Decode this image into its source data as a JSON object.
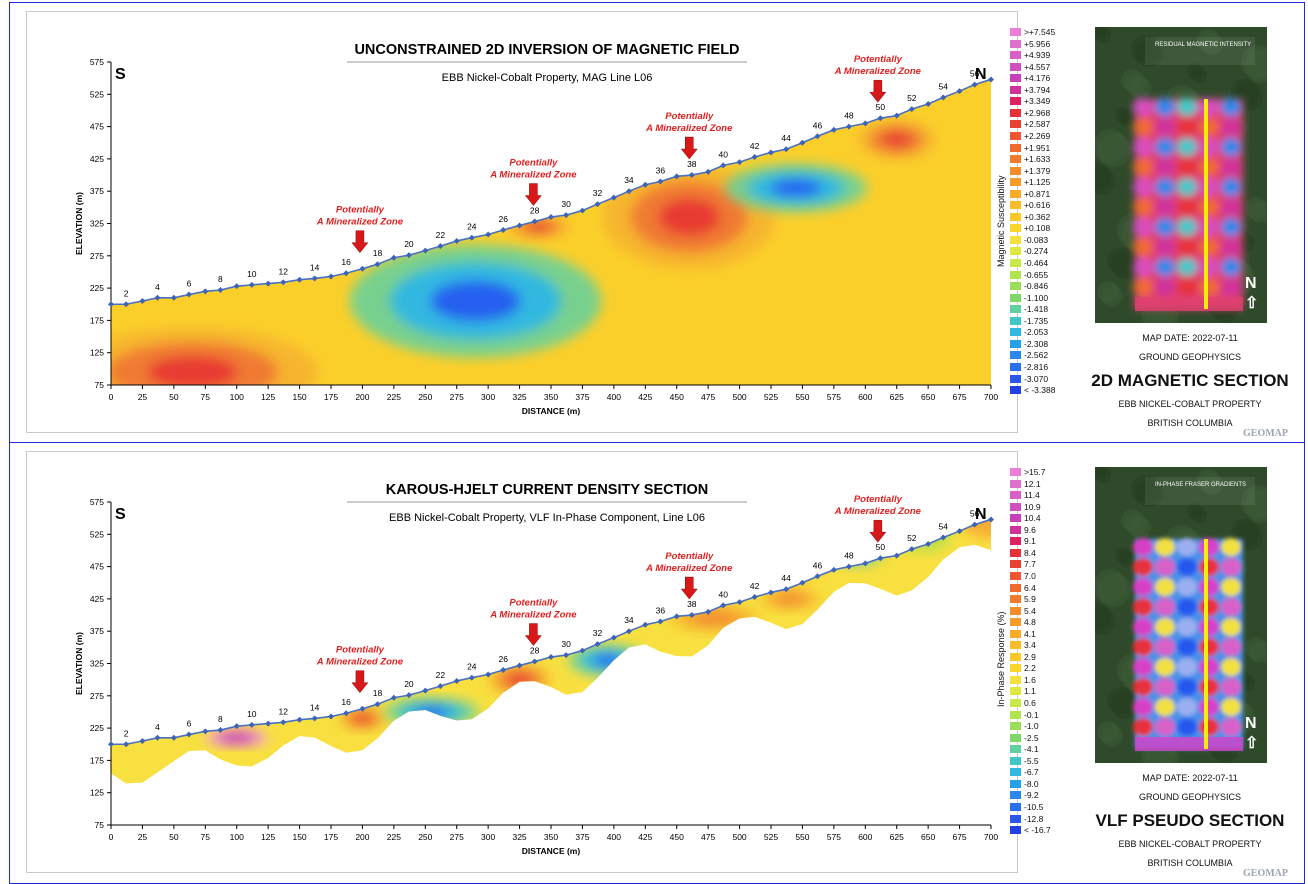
{
  "chart_data": [
    {
      "type": "contour",
      "title": "UNCONSTRAINED 2D INVERSION OF MAGNETIC FIELD",
      "subtitle": "EBB Nickel-Cobalt Property, MAG Line L06",
      "xlabel": "DISTANCE (m)",
      "ylabel": "ELEVATION (m)",
      "xlim": [
        0,
        700
      ],
      "ylim": [
        75,
        575
      ],
      "x_ticks": [
        0,
        25,
        50,
        75,
        100,
        125,
        150,
        175,
        200,
        225,
        250,
        275,
        300,
        325,
        350,
        375,
        400,
        425,
        450,
        475,
        500,
        525,
        550,
        575,
        600,
        625,
        650,
        675,
        700
      ],
      "y_ticks": [
        75,
        125,
        175,
        225,
        275,
        325,
        375,
        425,
        475,
        525,
        575
      ],
      "end_labels": {
        "left": "S",
        "right": "N"
      },
      "stations": {
        "x": [
          0,
          12,
          25,
          37,
          50,
          62,
          75,
          87,
          100,
          112,
          125,
          137,
          150,
          162,
          175,
          187,
          200,
          212,
          225,
          237,
          250,
          262,
          275,
          287,
          300,
          312,
          325,
          337,
          350,
          362,
          375,
          387,
          400,
          412,
          425,
          437,
          450,
          462,
          475,
          487,
          500,
          512,
          525,
          537,
          550,
          562,
          575,
          587,
          600,
          612,
          625,
          637,
          650,
          662,
          675,
          687,
          700
        ],
        "elevation": [
          200,
          200,
          205,
          210,
          210,
          215,
          220,
          222,
          228,
          230,
          232,
          234,
          238,
          240,
          243,
          248,
          255,
          262,
          272,
          276,
          283,
          290,
          298,
          303,
          308,
          315,
          322,
          328,
          335,
          338,
          345,
          355,
          365,
          375,
          385,
          390,
          398,
          400,
          405,
          415,
          420,
          428,
          435,
          440,
          450,
          460,
          470,
          475,
          480,
          488,
          492,
          502,
          510,
          520,
          530,
          540,
          548
        ],
        "labels": [
          2,
          4,
          6,
          8,
          10,
          12,
          14,
          16,
          18,
          20,
          22,
          24,
          26,
          28,
          30,
          32,
          34,
          36,
          38,
          40,
          42,
          44,
          46,
          48,
          50,
          52,
          54,
          56
        ],
        "label_x": [
          12,
          37,
          62,
          87,
          112,
          137,
          162,
          187,
          212,
          237,
          262,
          287,
          312,
          337,
          362,
          387,
          412,
          437,
          462,
          487,
          512,
          537,
          562,
          587,
          612,
          637,
          662,
          687
        ]
      },
      "annotations": [
        {
          "text": "Potentially A Mineralized Zone",
          "x": 198
        },
        {
          "text": "Potentially A Mineralized Zone",
          "x": 336
        },
        {
          "text": "Potentially A Mineralized Zone",
          "x": 460
        },
        {
          "text": "Potentially A Mineralized Zone",
          "x": 610
        }
      ],
      "anomalies": [
        {
          "x": 65,
          "y": 95,
          "rx": 80,
          "ry": 55,
          "level": "high"
        },
        {
          "x": 290,
          "y": 205,
          "rx": 80,
          "ry": 70,
          "level": "low"
        },
        {
          "x": 460,
          "y": 335,
          "rx": 55,
          "ry": 65,
          "level": "high"
        },
        {
          "x": 545,
          "y": 380,
          "rx": 45,
          "ry": 30,
          "level": "low"
        },
        {
          "x": 625,
          "y": 455,
          "rx": 25,
          "ry": 25,
          "level": "high"
        },
        {
          "x": 340,
          "y": 320,
          "rx": 20,
          "ry": 15,
          "level": "high"
        }
      ],
      "legend": {
        "title": "Magnetic Susceptibility",
        "entries": [
          ">+7.545",
          "+5.956",
          "+4.939",
          "+4.557",
          "+4.176",
          "+3.794",
          "+3.349",
          "+2.968",
          "+2.587",
          "+2.269",
          "+1.951",
          "+1.633",
          "+1.379",
          "+1.125",
          "+0.871",
          "+0.616",
          "+0.362",
          "+0.108",
          "-0.083",
          "-0.274",
          "-0.464",
          "-0.655",
          "-0.846",
          "-1.100",
          "-1.418",
          "-1.735",
          "-2.053",
          "-2.308",
          "-2.562",
          "-2.816",
          "-3.070",
          "< -3.388"
        ],
        "colors": [
          "#e87fd4",
          "#e070cc",
          "#d860c8",
          "#d050c0",
          "#c640b8",
          "#d0309c",
          "#e02060",
          "#e8303a",
          "#ea4030",
          "#ee5530",
          "#f06a30",
          "#f27a2e",
          "#f48c2c",
          "#f69c2a",
          "#f8ac28",
          "#f9bb28",
          "#fac828",
          "#fbd52a",
          "#f4e03a",
          "#e0e840",
          "#c8e848",
          "#b0e450",
          "#98de58",
          "#80d86a",
          "#60d0a0",
          "#40c8c8",
          "#30b8e0",
          "#28a0e8",
          "#2888ec",
          "#2870f0",
          "#2858f0",
          "#2040e8"
        ]
      },
      "map_panel": {
        "header": "RESIDUAL MAGNETIC INTENSITY",
        "map_date": "MAP DATE: 2022-07-11",
        "survey": "GROUND GEOPHYSICS",
        "section_title": "2D MAGNETIC SECTION",
        "property": "EBB NICKEL-COBALT PROPERTY",
        "region": "BRITISH COLUMBIA",
        "north_label": "N",
        "logo": "GEOMAP"
      }
    },
    {
      "type": "contour",
      "title": "KAROUS-HJELT CURRENT DENSITY SECTION",
      "subtitle": "EBB Nickel-Cobalt Property, VLF In-Phase Component, Line L06",
      "xlabel": "DISTANCE (m)",
      "ylabel": "ELEVATION (m)",
      "xlim": [
        0,
        700
      ],
      "ylim": [
        75,
        575
      ],
      "x_ticks": [
        0,
        25,
        50,
        75,
        100,
        125,
        150,
        175,
        200,
        225,
        250,
        275,
        300,
        325,
        350,
        375,
        400,
        425,
        450,
        475,
        500,
        525,
        550,
        575,
        600,
        625,
        650,
        675,
        700
      ],
      "y_ticks": [
        75,
        125,
        175,
        225,
        275,
        325,
        375,
        425,
        475,
        525,
        575
      ],
      "end_labels": {
        "left": "S",
        "right": "N"
      },
      "stations": {
        "x": [
          0,
          12,
          25,
          37,
          50,
          62,
          75,
          87,
          100,
          112,
          125,
          137,
          150,
          162,
          175,
          187,
          200,
          212,
          225,
          237,
          250,
          262,
          275,
          287,
          300,
          312,
          325,
          337,
          350,
          362,
          375,
          387,
          400,
          412,
          425,
          437,
          450,
          462,
          475,
          487,
          500,
          512,
          525,
          537,
          550,
          562,
          575,
          587,
          600,
          612,
          625,
          637,
          650,
          662,
          675,
          687,
          700
        ],
        "elevation": [
          200,
          200,
          205,
          210,
          210,
          215,
          220,
          222,
          228,
          230,
          232,
          234,
          238,
          240,
          243,
          248,
          255,
          262,
          272,
          276,
          283,
          290,
          298,
          303,
          308,
          315,
          322,
          328,
          335,
          338,
          345,
          355,
          365,
          375,
          385,
          390,
          398,
          400,
          405,
          415,
          420,
          428,
          435,
          440,
          450,
          460,
          470,
          475,
          480,
          488,
          492,
          502,
          510,
          520,
          530,
          540,
          548
        ],
        "labels": [
          2,
          4,
          6,
          8,
          10,
          12,
          14,
          16,
          18,
          20,
          22,
          24,
          26,
          28,
          30,
          32,
          34,
          36,
          38,
          40,
          42,
          44,
          46,
          48,
          50,
          52,
          54,
          56
        ],
        "label_x": [
          12,
          37,
          62,
          87,
          112,
          137,
          162,
          187,
          212,
          237,
          262,
          287,
          312,
          337,
          362,
          387,
          412,
          437,
          462,
          487,
          512,
          537,
          562,
          587,
          612,
          637,
          662,
          687
        ]
      },
      "annotations": [
        {
          "text": "Potentially A Mineralized Zone",
          "x": 198
        },
        {
          "text": "Potentially A Mineralized Zone",
          "x": 336
        },
        {
          "text": "Potentially A Mineralized Zone",
          "x": 460
        },
        {
          "text": "Potentially A Mineralized Zone",
          "x": 610
        }
      ],
      "anomalies": [
        {
          "x": 100,
          "y": 210,
          "rx": 20,
          "ry": 12,
          "level": "very-high"
        },
        {
          "x": 200,
          "y": 240,
          "rx": 15,
          "ry": 15,
          "level": "high"
        },
        {
          "x": 255,
          "y": 250,
          "rx": 30,
          "ry": 18,
          "level": "low"
        },
        {
          "x": 325,
          "y": 300,
          "rx": 20,
          "ry": 20,
          "level": "high"
        },
        {
          "x": 395,
          "y": 330,
          "rx": 25,
          "ry": 20,
          "level": "low"
        },
        {
          "x": 480,
          "y": 395,
          "rx": 30,
          "ry": 18,
          "level": "mid"
        },
        {
          "x": 540,
          "y": 425,
          "rx": 20,
          "ry": 15,
          "level": "mid"
        }
      ],
      "legend": {
        "title": "In-Phase Response (%)",
        "entries": [
          ">15.7",
          "12.1",
          "11.4",
          "10.9",
          "10.4",
          "9.6",
          "9.1",
          "8.4",
          "7.7",
          "7.0",
          "6.4",
          "5.9",
          "5.4",
          "4.8",
          "4.1",
          "3.4",
          "2.9",
          "2.2",
          "1.6",
          "1.1",
          "0.6",
          "-0.1",
          "-1.0",
          "-2.5",
          "-4.1",
          "-5.5",
          "-6.7",
          "-8.0",
          "-9.2",
          "-10.5",
          "-12.8",
          "< -16.7"
        ],
        "colors": [
          "#e87fd4",
          "#e070cc",
          "#d860c8",
          "#d050c0",
          "#c640b8",
          "#d0309c",
          "#e02060",
          "#e8303a",
          "#ea4030",
          "#ee5530",
          "#f06a30",
          "#f27a2e",
          "#f48c2c",
          "#f69c2a",
          "#f8ac28",
          "#f9bb28",
          "#fac828",
          "#fbd52a",
          "#f4e03a",
          "#e0e840",
          "#c8e848",
          "#b0e450",
          "#98de58",
          "#80d86a",
          "#60d0a0",
          "#40c8c8",
          "#30b8e0",
          "#28a0e8",
          "#2888ec",
          "#2870f0",
          "#2858f0",
          "#2040e8"
        ]
      },
      "map_panel": {
        "header": "IN-PHASE FRASER GRADIENTS",
        "map_date": "MAP DATE: 2022-07-11",
        "survey": "GROUND GEOPHYSICS",
        "section_title": "VLF PSEUDO SECTION",
        "property": "EBB NICKEL-COBALT PROPERTY",
        "region": "BRITISH COLUMBIA",
        "north_label": "N",
        "logo": "GEOMAP"
      }
    }
  ]
}
